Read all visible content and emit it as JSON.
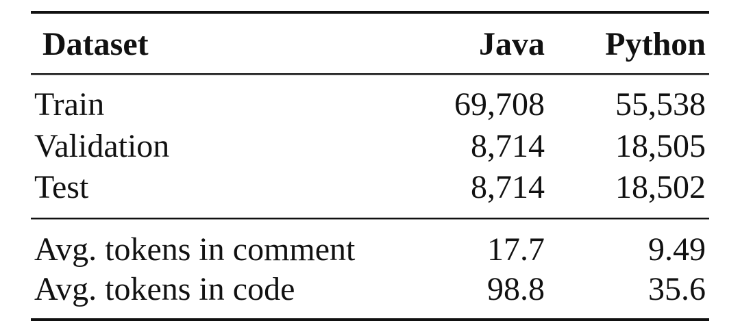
{
  "table": {
    "header": [
      "Dataset",
      "Java",
      "Python"
    ],
    "sections": [
      {
        "rows": [
          [
            "Train",
            "69,708",
            "55,538"
          ],
          [
            "Validation",
            "8,714",
            "18,505"
          ],
          [
            "Test",
            "8,714",
            "18,502"
          ]
        ]
      },
      {
        "rows": [
          [
            "Avg. tokens in comment",
            "17.7",
            "9.49"
          ],
          [
            "Avg. tokens in code",
            "98.8",
            "35.6"
          ]
        ]
      }
    ]
  }
}
